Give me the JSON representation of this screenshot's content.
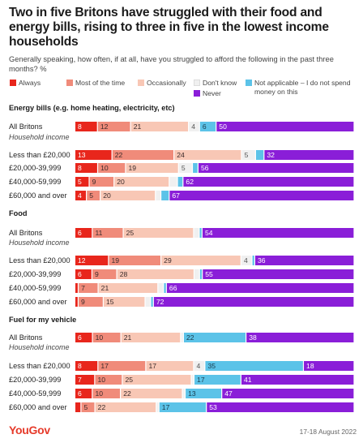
{
  "title": "Two in five Britons have struggled with their food and energy bills, rising to three in five in the lowest income households",
  "subtitle": "Generally speaking, how often, if at all, have you struggled to afford the following in the past three months? %",
  "source": {
    "brand": "YouGov",
    "date": "17-18 August 2022"
  },
  "colors": {
    "always": "#e8261c",
    "most": "#f08b7a",
    "occasionally": "#f8c7b5",
    "dont_know": "#f0f0f0",
    "na": "#5cc3e8",
    "never": "#8a1ed8"
  },
  "chart_data": {
    "type": "bar",
    "orientation": "horizontal",
    "stacked": true,
    "xlim": [
      0,
      100
    ],
    "legend_position": "top",
    "series": [
      {
        "name": "Always",
        "color": "#e8261c"
      },
      {
        "name": "Most of the time",
        "color": "#f08b7a"
      },
      {
        "name": "Occasionally",
        "color": "#f8c7b5"
      },
      {
        "name": "Don't know",
        "color": "#f0f0f0"
      },
      {
        "name": "Not applicable – I do not spend money on this",
        "color": "#5cc3e8"
      },
      {
        "name": "Never",
        "color": "#8a1ed8"
      }
    ],
    "subgroup_label": "Household income",
    "groups": [
      {
        "title": "Energy bills (e.g. home heating, electricity, etc)",
        "rows": [
          {
            "label": "All Britons",
            "values": [
              8,
              12,
              21,
              4,
              6,
              50
            ]
          },
          {
            "label": "Less than £20,000",
            "values": [
              13,
              22,
              24,
              5,
              3,
              32
            ]
          },
          {
            "label": "£20,000-39,999",
            "values": [
              8,
              10,
              19,
              5,
              2,
              56
            ]
          },
          {
            "label": "£40,000-59,999",
            "values": [
              5,
              9,
              20,
              3,
              2,
              62
            ]
          },
          {
            "label": "£60,000 and over",
            "values": [
              4,
              5,
              20,
              2,
              3,
              67
            ]
          }
        ]
      },
      {
        "title": "Food",
        "rows": [
          {
            "label": "All Britons",
            "values": [
              6,
              11,
              25,
              2,
              1,
              54
            ]
          },
          {
            "label": "Less than £20,000",
            "values": [
              12,
              19,
              29,
              4,
              1,
              36
            ]
          },
          {
            "label": "£20,000-39,999",
            "values": [
              6,
              9,
              28,
              2,
              1,
              55
            ]
          },
          {
            "label": "£40,000-59,999",
            "values": [
              1,
              7,
              21,
              2,
              1,
              66
            ]
          },
          {
            "label": "£60,000 and over",
            "values": [
              1,
              9,
              15,
              2,
              1,
              72
            ]
          }
        ]
      },
      {
        "title": "Fuel for my vehicle",
        "rows": [
          {
            "label": "All Britons",
            "values": [
              6,
              10,
              21,
              1,
              22,
              38
            ]
          },
          {
            "label": "Less than £20,000",
            "values": [
              8,
              17,
              17,
              4,
              35,
              18
            ]
          },
          {
            "label": "£20,000-39,999",
            "values": [
              7,
              10,
              25,
              1,
              17,
              41
            ]
          },
          {
            "label": "£40,000-59,999",
            "values": [
              6,
              10,
              22,
              1,
              13,
              47
            ]
          },
          {
            "label": "£60,000 and over",
            "values": [
              2,
              5,
              22,
              1,
              17,
              53
            ]
          }
        ]
      }
    ]
  }
}
